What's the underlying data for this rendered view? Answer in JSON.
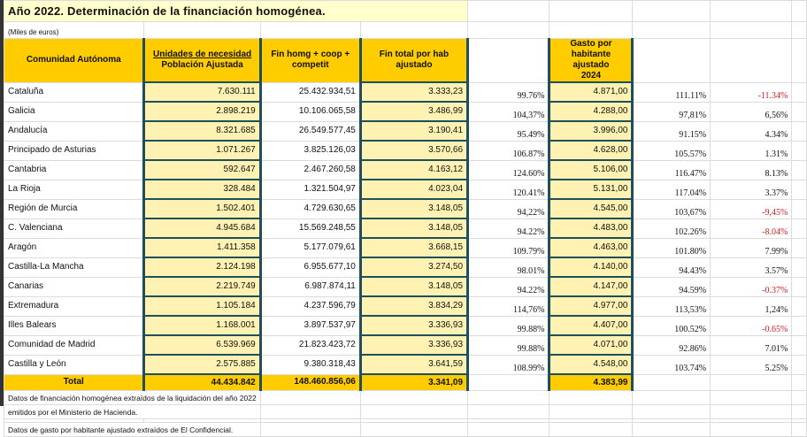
{
  "title": "Año 2022. Determinación de la financiación homogénea.",
  "units_note": "(Miles de euros)",
  "headers": {
    "comunidad": "Comunidad Autónoma",
    "unidades_line1": "Unidades de necesidad",
    "unidades_line2": "Población Ajustada",
    "fin_homg": "Fin homg + coop + competit",
    "fin_total": "Fin total por hab ajustado",
    "gasto": "Gasto por habitante ajustado 2024"
  },
  "rows": [
    {
      "name": "Cataluña",
      "unidades": "7.630.111",
      "fin_homg": "25.432.934,51",
      "fin_total": "3.333,23",
      "pct1": "99.76%",
      "gasto": "4.871,00",
      "pct2": "111.11%",
      "diff": "-11.34%",
      "neg": true
    },
    {
      "name": "Galicia",
      "unidades": "2.898.219",
      "fin_homg": "10.106.065,58",
      "fin_total": "3.486,99",
      "pct1": "104,37%",
      "gasto": "4.288,00",
      "pct2": "97,81%",
      "diff": "6,56%",
      "neg": false
    },
    {
      "name": "Andalucía",
      "unidades": "8.321.685",
      "fin_homg": "26.549.577,45",
      "fin_total": "3.190,41",
      "pct1": "95.49%",
      "gasto": "3.996,00",
      "pct2": "91.15%",
      "diff": "4.34%",
      "neg": false
    },
    {
      "name": "Principado de Asturias",
      "unidades": "1.071.267",
      "fin_homg": "3.825.126,03",
      "fin_total": "3.570,66",
      "pct1": "106.87%",
      "gasto": "4.628,00",
      "pct2": "105.57%",
      "diff": "1.31%",
      "neg": false
    },
    {
      "name": "Cantabria",
      "unidades": "592.647",
      "fin_homg": "2.467.260,58",
      "fin_total": "4.163,12",
      "pct1": "124.60%",
      "gasto": "5.106,00",
      "pct2": "116.47%",
      "diff": "8.13%",
      "neg": false
    },
    {
      "name": "La Rioja",
      "unidades": "328.484",
      "fin_homg": "1.321.504,97",
      "fin_total": "4.023,04",
      "pct1": "120.41%",
      "gasto": "5.131,00",
      "pct2": "117.04%",
      "diff": "3.37%",
      "neg": false
    },
    {
      "name": "Región de Murcia",
      "unidades": "1.502.401",
      "fin_homg": "4.729.630,65",
      "fin_total": "3.148,05",
      "pct1": "94,22%",
      "gasto": "4.545,00",
      "pct2": "103,67%",
      "diff": "-9,45%",
      "neg": true
    },
    {
      "name": "C. Valenciana",
      "unidades": "4.945.684",
      "fin_homg": "15.569.248,55",
      "fin_total": "3.148,05",
      "pct1": "94.22%",
      "gasto": "4.483,00",
      "pct2": "102.26%",
      "diff": "-8.04%",
      "neg": true
    },
    {
      "name": "Aragón",
      "unidades": "1.411.358",
      "fin_homg": "5.177.079,61",
      "fin_total": "3.668,15",
      "pct1": "109.79%",
      "gasto": "4.463,00",
      "pct2": "101.80%",
      "diff": "7.99%",
      "neg": false
    },
    {
      "name": "Castilla-La Mancha",
      "unidades": "2.124.198",
      "fin_homg": "6.955.677,10",
      "fin_total": "3.274,50",
      "pct1": "98.01%",
      "gasto": "4.140,00",
      "pct2": "94.43%",
      "diff": "3.57%",
      "neg": false
    },
    {
      "name": "Canarias",
      "unidades": "2.219.749",
      "fin_homg": "6.987.874,11",
      "fin_total": "3.148,05",
      "pct1": "94.22%",
      "gasto": "4.147,00",
      "pct2": "94.59%",
      "diff": "-0.37%",
      "neg": true
    },
    {
      "name": "Extremadura",
      "unidades": "1.105.184",
      "fin_homg": "4.237.596,79",
      "fin_total": "3.834,29",
      "pct1": "114,76%",
      "gasto": "4.977,00",
      "pct2": "113,53%",
      "diff": "1,24%",
      "neg": false
    },
    {
      "name": "Illes Balears",
      "unidades": "1.168.001",
      "fin_homg": "3.897.537,97",
      "fin_total": "3.336,93",
      "pct1": "99.88%",
      "gasto": "4.407,00",
      "pct2": "100.52%",
      "diff": "-0.65%",
      "neg": true
    },
    {
      "name": "Comunidad de Madrid",
      "unidades": "6.539.969",
      "fin_homg": "21.823.423,72",
      "fin_total": "3.336,93",
      "pct1": "99.88%",
      "gasto": "4.071,00",
      "pct2": "92.86%",
      "diff": "7.01%",
      "neg": false
    },
    {
      "name": "Castilla y León",
      "unidades": "2.575.885",
      "fin_homg": "9.380.318,43",
      "fin_total": "3.641,59",
      "pct1": "108.99%",
      "gasto": "4.548,00",
      "pct2": "103.74%",
      "diff": "5.25%",
      "neg": false
    }
  ],
  "total": {
    "label": "Total",
    "unidades": "44.434.842",
    "fin_homg": "148.460.856,06",
    "fin_total": "3.341,09",
    "gasto": "4.383,99"
  },
  "notes": [
    "Datos de financiación homogénea extraídos de la liquidación del año 2022",
    "emitidos por el Ministerio de Hacienda.",
    "Datos de gasto por habitante ajustado extraídos de El Confidencial."
  ],
  "colors": {
    "header": "#ffcc00",
    "cell_fill": "#fff2b3",
    "title_fill": "#ffffcc",
    "border": "#1f4e5f",
    "negative": "#d42020"
  }
}
